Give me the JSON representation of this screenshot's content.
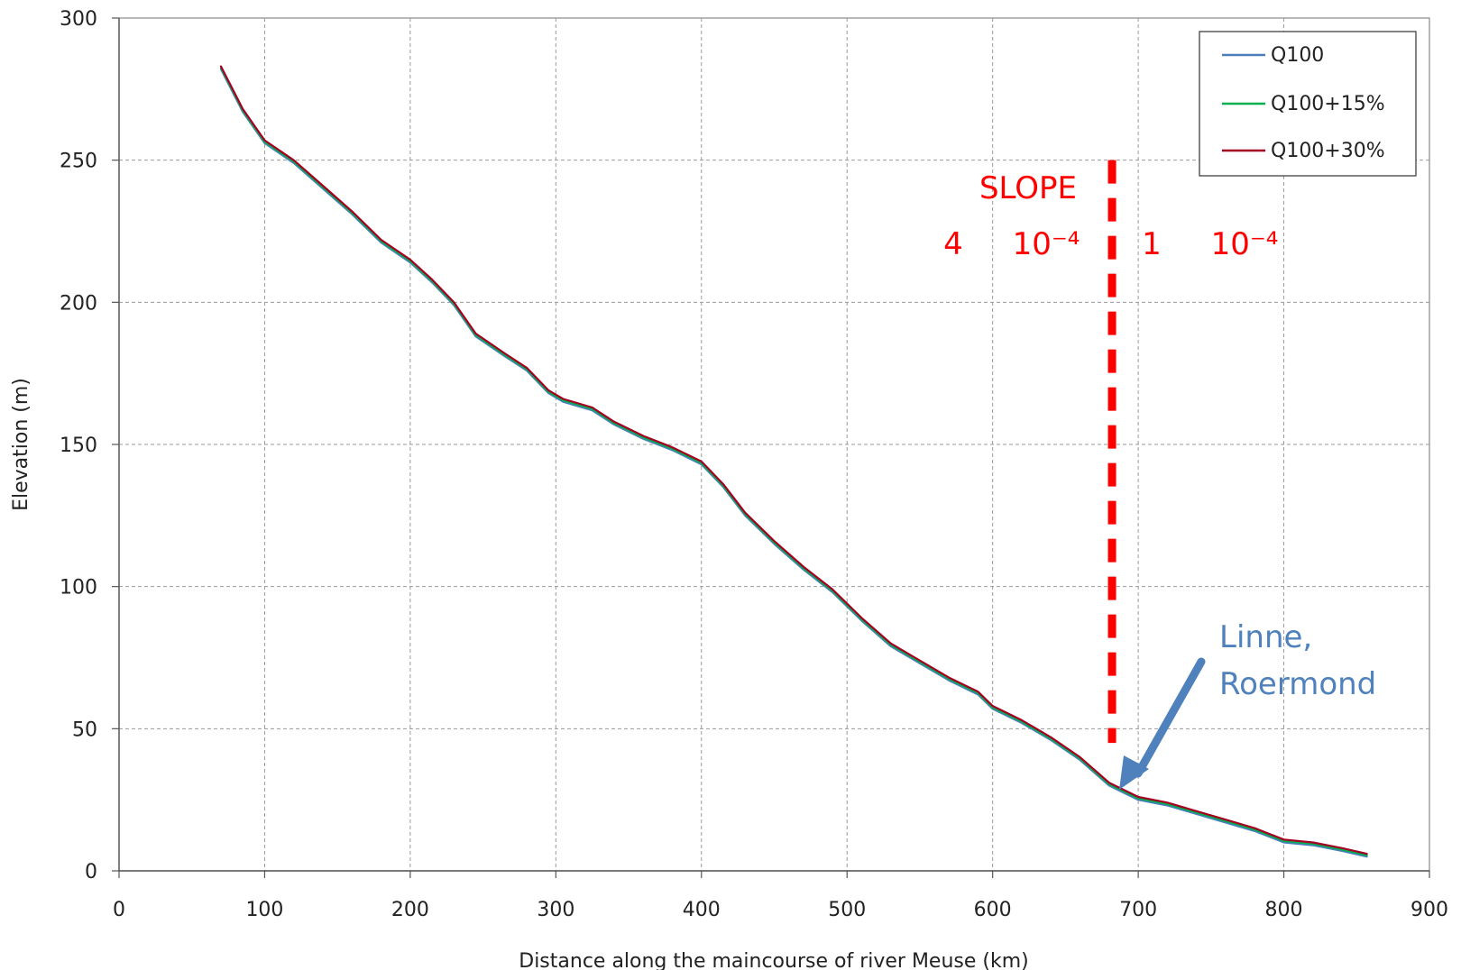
{
  "chart_data": {
    "type": "line",
    "xlabel": "Distance along the maincourse of river Meuse (km)",
    "ylabel": "Elevation (m)",
    "xlim": [
      0,
      900
    ],
    "ylim": [
      0,
      300
    ],
    "xticks": [
      0,
      100,
      200,
      300,
      400,
      500,
      600,
      700,
      800,
      900
    ],
    "yticks": [
      0,
      50,
      100,
      150,
      200,
      250,
      300
    ],
    "grid": true,
    "legend_position": "top-right",
    "series": [
      {
        "name": "Q100",
        "color": "#4a7ebb",
        "x": [
          70,
          85,
          100,
          120,
          140,
          160,
          180,
          200,
          215,
          230,
          245,
          265,
          280,
          295,
          305,
          325,
          340,
          360,
          380,
          400,
          415,
          430,
          450,
          470,
          490,
          510,
          530,
          550,
          570,
          590,
          600,
          620,
          640,
          660,
          680,
          700,
          720,
          740,
          760,
          780,
          800,
          820,
          840,
          857
        ],
        "y": [
          282,
          267,
          256,
          249,
          240,
          231,
          221,
          214,
          207,
          199,
          188,
          181,
          176,
          168,
          165,
          162,
          157,
          152,
          148,
          143,
          135,
          125,
          115,
          106,
          98,
          88,
          79,
          73,
          67,
          62,
          57,
          52,
          46,
          39,
          30,
          25,
          23,
          20,
          17,
          14,
          10,
          9,
          7,
          5
        ]
      },
      {
        "name": "Q100+15%",
        "color": "#00b050",
        "x": [
          70,
          85,
          100,
          120,
          140,
          160,
          180,
          200,
          215,
          230,
          245,
          265,
          280,
          295,
          305,
          325,
          340,
          360,
          380,
          400,
          415,
          430,
          450,
          470,
          490,
          510,
          530,
          550,
          570,
          590,
          600,
          620,
          640,
          660,
          680,
          700,
          720,
          740,
          760,
          780,
          800,
          820,
          840,
          857
        ],
        "y": [
          282.5,
          267.5,
          256.5,
          249.5,
          240.5,
          231.5,
          221.5,
          214.5,
          207.5,
          199.5,
          188.5,
          181.5,
          176.5,
          168.5,
          165.5,
          162.5,
          157.5,
          152.5,
          148.5,
          143.5,
          135.5,
          125.5,
          115.5,
          106.5,
          98.5,
          88.5,
          79.5,
          73.5,
          67.5,
          62.5,
          57.5,
          52.5,
          46.5,
          39.5,
          30.5,
          25.5,
          23.5,
          20.5,
          17.5,
          14.5,
          10.5,
          9.5,
          7.5,
          5.5
        ]
      },
      {
        "name": "Q100+30%",
        "color": "#a50021",
        "x": [
          70,
          85,
          100,
          120,
          140,
          160,
          180,
          200,
          215,
          230,
          245,
          265,
          280,
          295,
          305,
          325,
          340,
          360,
          380,
          400,
          415,
          430,
          450,
          470,
          490,
          510,
          530,
          550,
          570,
          590,
          600,
          620,
          640,
          660,
          680,
          700,
          720,
          740,
          760,
          780,
          800,
          820,
          840,
          857
        ],
        "y": [
          283,
          268,
          257,
          250,
          241,
          232,
          222,
          215,
          208,
          200,
          189,
          182,
          177,
          169,
          166,
          163,
          158,
          153,
          149,
          144,
          136,
          126,
          116,
          107,
          99,
          89,
          80,
          74,
          68,
          63,
          58,
          53,
          47,
          40,
          31,
          26,
          24,
          21,
          18,
          15,
          11,
          10,
          8,
          6
        ]
      }
    ],
    "annotations": {
      "slope_title": "SLOPE",
      "slope_left_coef": "4",
      "slope_left_exp": "10⁻⁴",
      "slope_right_coef": "1",
      "slope_right_exp": "10⁻⁴",
      "divider_x": 682,
      "divider_y_range": [
        45,
        250
      ],
      "divider_color": "#ff0000",
      "location_line1": "Linne,",
      "location_line2": "Roermond",
      "location_color": "#4f81bd",
      "arrow_tip": [
        688,
        28
      ]
    }
  }
}
